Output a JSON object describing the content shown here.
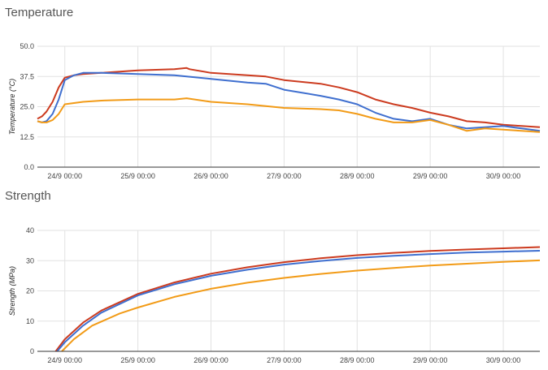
{
  "colors": {
    "red": "#cc3b1f",
    "blue": "#3f6fcf",
    "orange": "#f29b17",
    "grid": "#e2e2e2",
    "baseline": "#333333"
  },
  "chart_data": [
    {
      "type": "line",
      "title": "Temperature",
      "ylabel": "Temperature (°C)",
      "ylim": [
        0,
        50
      ],
      "yticks": [
        "0.0",
        "12.5",
        "25.0",
        "37.5",
        "50.0"
      ],
      "ytick_values": [
        0,
        12.5,
        25,
        37.5,
        50
      ],
      "xlim": [
        "2023-09-23T15:00",
        "2023-09-30T12:00"
      ],
      "xtick_values": [
        "2023-09-24T00:00",
        "2023-09-25T00:00",
        "2023-09-26T00:00",
        "2023-09-27T00:00",
        "2023-09-28T00:00",
        "2023-09-29T00:00",
        "2023-09-30T00:00"
      ],
      "xticks": [
        "24/9 00:00",
        "25/9 00:00",
        "26/9 00:00",
        "27/9 00:00",
        "28/9 00:00",
        "29/9 00:00",
        "30/9 00:00"
      ],
      "grid": true,
      "series": [
        {
          "color": "#cc3b1f",
          "x": [
            "2023-09-23T15:00",
            "2023-09-23T16:30",
            "2023-09-23T18:00",
            "2023-09-23T20:00",
            "2023-09-23T22:00",
            "2023-09-24T00:00",
            "2023-09-24T03:00",
            "2023-09-24T06:00",
            "2023-09-24T12:00",
            "2023-09-25T00:00",
            "2023-09-25T12:00",
            "2023-09-25T16:00",
            "2023-09-25T17:00",
            "2023-09-26T00:00",
            "2023-09-26T12:00",
            "2023-09-26T18:00",
            "2023-09-27T00:00",
            "2023-09-27T12:00",
            "2023-09-27T18:00",
            "2023-09-28T00:00",
            "2023-09-28T06:00",
            "2023-09-28T12:00",
            "2023-09-28T18:00",
            "2023-09-29T00:00",
            "2023-09-29T06:00",
            "2023-09-29T12:00",
            "2023-09-29T18:00",
            "2023-09-30T00:00",
            "2023-09-30T06:00",
            "2023-09-30T12:00"
          ],
          "y": [
            20,
            21,
            23,
            27,
            33,
            37,
            38,
            38.5,
            39,
            40,
            40.5,
            41,
            40.5,
            39,
            38,
            37.5,
            36,
            34.5,
            33,
            31,
            28,
            26,
            24.5,
            22.5,
            21,
            19,
            18.5,
            17.5,
            17,
            16.5
          ]
        },
        {
          "color": "#3f6fcf",
          "x": [
            "2023-09-23T15:00",
            "2023-09-23T16:30",
            "2023-09-23T18:00",
            "2023-09-23T20:00",
            "2023-09-23T22:00",
            "2023-09-24T00:00",
            "2023-09-24T03:00",
            "2023-09-24T06:00",
            "2023-09-24T12:00",
            "2023-09-25T00:00",
            "2023-09-25T12:00",
            "2023-09-25T16:00",
            "2023-09-26T00:00",
            "2023-09-26T12:00",
            "2023-09-26T18:00",
            "2023-09-27T00:00",
            "2023-09-27T12:00",
            "2023-09-27T18:00",
            "2023-09-28T00:00",
            "2023-09-28T06:00",
            "2023-09-28T12:00",
            "2023-09-28T18:00",
            "2023-09-29T00:00",
            "2023-09-29T06:00",
            "2023-09-29T12:00",
            "2023-09-29T18:00",
            "2023-09-30T00:00",
            "2023-09-30T06:00",
            "2023-09-30T12:00"
          ],
          "y": [
            19,
            18.5,
            19,
            22,
            28,
            36,
            38,
            39,
            39,
            38.5,
            38,
            37.5,
            36.5,
            35,
            34.5,
            32,
            29.5,
            28,
            26,
            22.5,
            20,
            19,
            20,
            17.5,
            16,
            16.5,
            17,
            16,
            15
          ]
        },
        {
          "color": "#f29b17",
          "x": [
            "2023-09-23T15:00",
            "2023-09-23T16:30",
            "2023-09-23T18:00",
            "2023-09-23T20:00",
            "2023-09-23T22:00",
            "2023-09-24T00:00",
            "2023-09-24T03:00",
            "2023-09-24T06:00",
            "2023-09-24T12:00",
            "2023-09-25T00:00",
            "2023-09-25T12:00",
            "2023-09-25T16:00",
            "2023-09-26T00:00",
            "2023-09-26T12:00",
            "2023-09-27T00:00",
            "2023-09-27T12:00",
            "2023-09-27T18:00",
            "2023-09-28T00:00",
            "2023-09-28T06:00",
            "2023-09-28T12:00",
            "2023-09-28T18:00",
            "2023-09-29T00:00",
            "2023-09-29T06:00",
            "2023-09-29T12:00",
            "2023-09-29T18:00",
            "2023-09-30T00:00",
            "2023-09-30T06:00",
            "2023-09-30T12:00"
          ],
          "y": [
            19,
            18.5,
            18.5,
            19.5,
            22,
            26,
            26.5,
            27,
            27.5,
            28,
            28,
            28.5,
            27,
            26,
            24.5,
            24,
            23.5,
            22,
            20,
            18.5,
            18.5,
            19.5,
            17.5,
            15,
            16,
            15.5,
            15,
            14.5
          ]
        }
      ]
    },
    {
      "type": "line",
      "title": "Strength",
      "ylabel": "Strength (MPa)",
      "ylim": [
        0,
        40
      ],
      "yticks": [
        "0",
        "10",
        "20",
        "30",
        "40"
      ],
      "ytick_values": [
        0,
        10,
        20,
        30,
        40
      ],
      "xlim": [
        "2023-09-23T15:00",
        "2023-09-30T12:00"
      ],
      "xtick_values": [
        "2023-09-24T00:00",
        "2023-09-25T00:00",
        "2023-09-26T00:00",
        "2023-09-27T00:00",
        "2023-09-28T00:00",
        "2023-09-29T00:00",
        "2023-09-30T00:00"
      ],
      "xticks": [
        "24/9 00:00",
        "25/9 00:00",
        "26/9 00:00",
        "27/9 00:00",
        "28/9 00:00",
        "29/9 00:00",
        "30/9 00:00"
      ],
      "grid": true,
      "series": [
        {
          "color": "#cc3b1f",
          "x": [
            "2023-09-23T21:00",
            "2023-09-24T00:00",
            "2023-09-24T06:00",
            "2023-09-24T12:00",
            "2023-09-25T00:00",
            "2023-09-25T12:00",
            "2023-09-26T00:00",
            "2023-09-26T12:00",
            "2023-09-27T00:00",
            "2023-09-27T12:00",
            "2023-09-28T00:00",
            "2023-09-28T12:00",
            "2023-09-29T00:00",
            "2023-09-29T12:00",
            "2023-09-30T00:00",
            "2023-09-30T12:00"
          ],
          "y": [
            0,
            4,
            9.5,
            13.5,
            19,
            22.8,
            25.7,
            27.8,
            29.5,
            30.8,
            31.8,
            32.6,
            33.2,
            33.7,
            34.1,
            34.5
          ]
        },
        {
          "color": "#3f6fcf",
          "x": [
            "2023-09-23T21:30",
            "2023-09-24T00:00",
            "2023-09-24T06:00",
            "2023-09-24T12:00",
            "2023-09-25T00:00",
            "2023-09-25T12:00",
            "2023-09-26T00:00",
            "2023-09-26T12:00",
            "2023-09-27T00:00",
            "2023-09-27T12:00",
            "2023-09-28T00:00",
            "2023-09-28T12:00",
            "2023-09-29T00:00",
            "2023-09-29T12:00",
            "2023-09-30T00:00",
            "2023-09-30T12:00"
          ],
          "y": [
            0,
            3,
            8.5,
            12.8,
            18.5,
            22.2,
            25,
            27,
            28.7,
            29.9,
            30.9,
            31.6,
            32.2,
            32.7,
            33,
            33.3
          ]
        },
        {
          "color": "#f29b17",
          "x": [
            "2023-09-23T23:00",
            "2023-09-24T03:00",
            "2023-09-24T09:00",
            "2023-09-24T18:00",
            "2023-09-25T00:00",
            "2023-09-25T12:00",
            "2023-09-26T00:00",
            "2023-09-26T12:00",
            "2023-09-27T00:00",
            "2023-09-27T12:00",
            "2023-09-28T00:00",
            "2023-09-28T12:00",
            "2023-09-29T00:00",
            "2023-09-29T12:00",
            "2023-09-30T00:00",
            "2023-09-30T12:00"
          ],
          "y": [
            0,
            4,
            8.5,
            12.5,
            14.5,
            18,
            20.7,
            22.7,
            24.3,
            25.6,
            26.7,
            27.6,
            28.4,
            29,
            29.6,
            30.1
          ]
        }
      ]
    }
  ]
}
